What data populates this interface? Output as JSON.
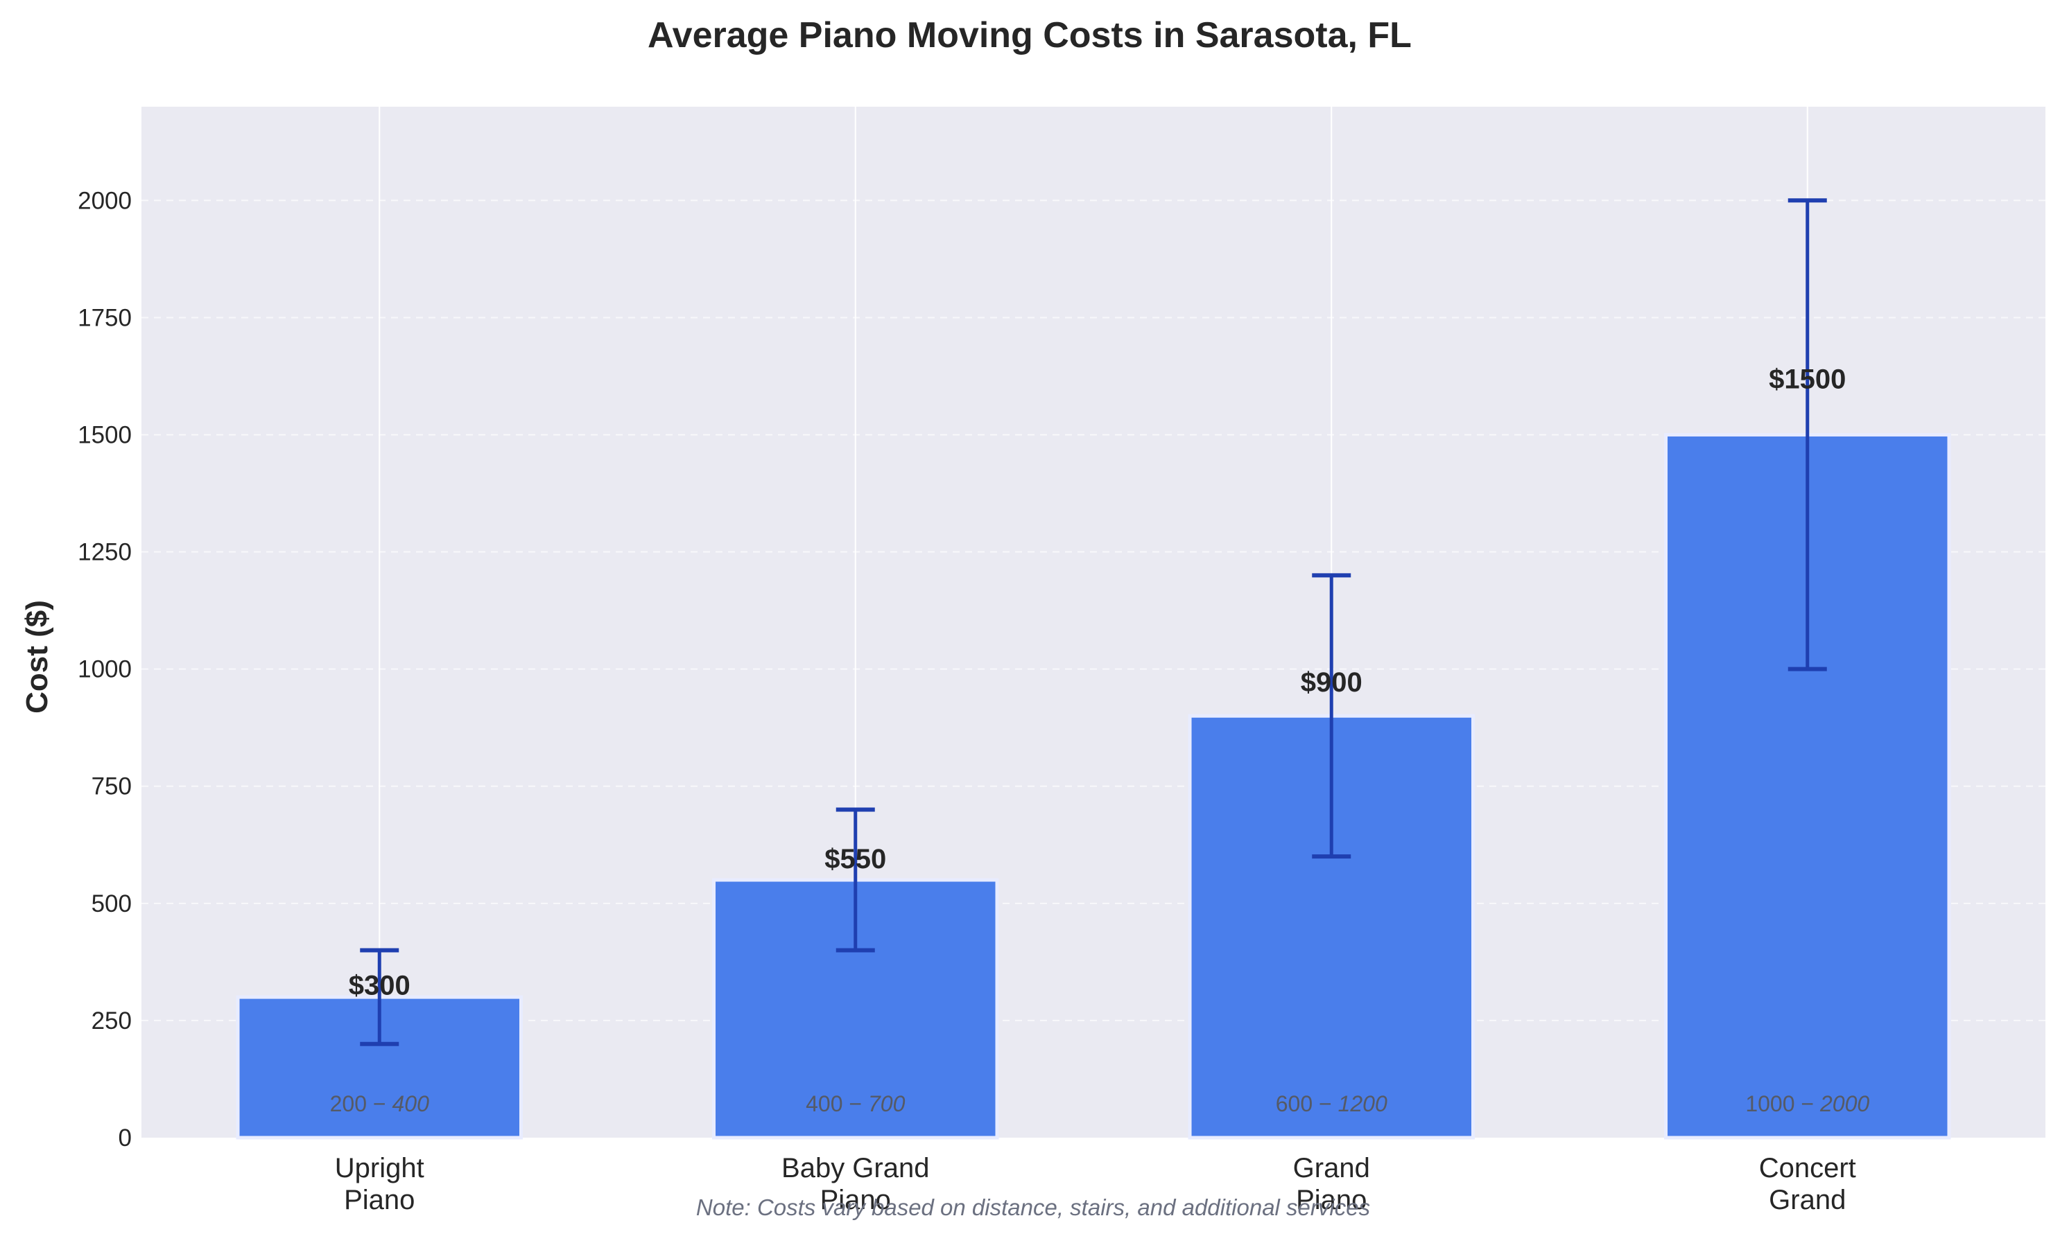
{
  "chart_data": {
    "type": "bar",
    "title": "Average Piano Moving Costs in Sarasota, FL",
    "xlabel": "",
    "ylabel": "Cost ($)",
    "ylim": [
      0,
      2200
    ],
    "yticks": [
      0,
      250,
      500,
      750,
      1000,
      1250,
      1500,
      1750,
      2000
    ],
    "grid": true,
    "categories": [
      [
        "Upright",
        "Piano"
      ],
      [
        "Baby Grand",
        "Piano"
      ],
      [
        "Grand",
        "Piano"
      ],
      [
        "Concert",
        "Grand"
      ]
    ],
    "values": [
      300,
      550,
      900,
      1500
    ],
    "error_low": [
      200,
      400,
      600,
      1000
    ],
    "error_high": [
      400,
      700,
      1200,
      2000
    ],
    "value_labels": [
      "$300",
      "$550",
      "$900",
      "$1500"
    ],
    "range_labels": [
      [
        "200 − ",
        "400"
      ],
      [
        "400 − ",
        "700"
      ],
      [
        "600 − ",
        "1200"
      ],
      [
        "1000 − ",
        "2000"
      ]
    ],
    "note": "Note: Costs vary based on distance, stairs, and additional services",
    "colors": {
      "bar": "#4a7eeb",
      "bar_edge": "#e8ecff",
      "error": "#1f3fb0",
      "plot_bg": "#eaeaf2",
      "text": "#262626",
      "range_text": "#555a66",
      "note_text": "#6b7080"
    }
  }
}
